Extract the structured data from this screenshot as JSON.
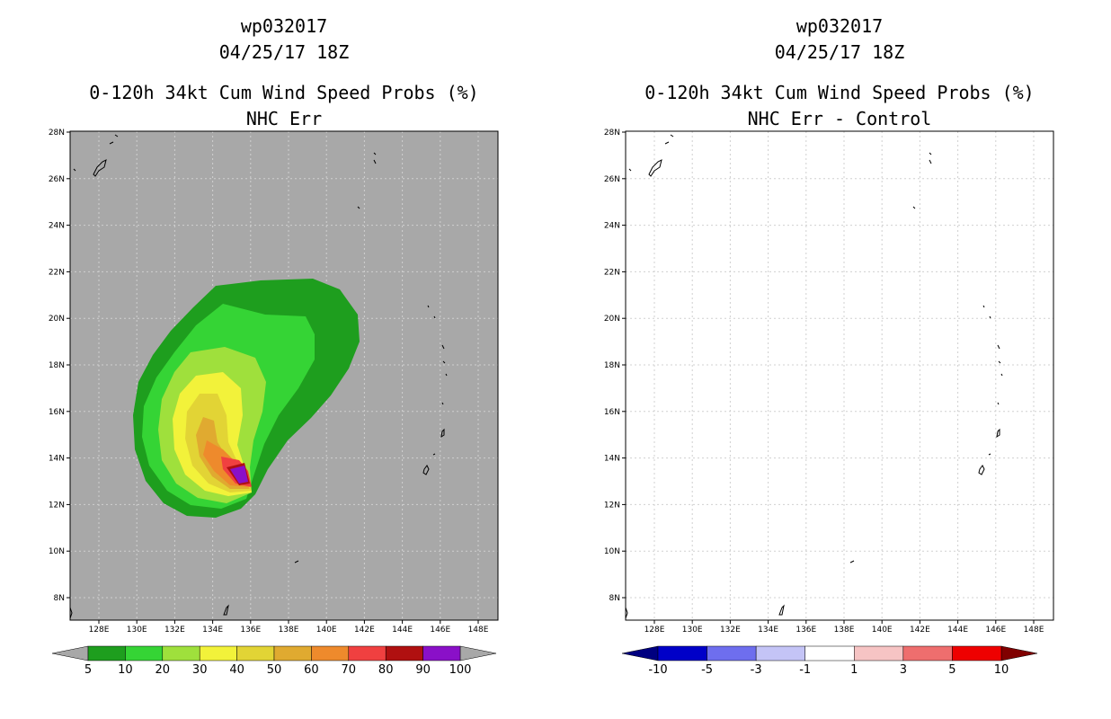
{
  "left": {
    "storm_id": "wp032017",
    "datetime": "04/25/17 18Z",
    "product": "0-120h 34kt Cum Wind Speed Probs (%)",
    "subtitle": "NHC Err",
    "colorbar": {
      "labels": [
        "5",
        "10",
        "20",
        "30",
        "40",
        "50",
        "60",
        "70",
        "80",
        "90",
        "100"
      ],
      "colors": [
        "#1e9e1e",
        "#35d435",
        "#9fe03c",
        "#f2f23a",
        "#e2d435",
        "#e0aa30",
        "#ee8a2c",
        "#f04040",
        "#b01010",
        "#8a10c8"
      ]
    }
  },
  "right": {
    "storm_id": "wp032017",
    "datetime": "04/25/17 18Z",
    "product": "0-120h 34kt Cum Wind Speed Probs (%)",
    "subtitle": "NHC Err - Control",
    "colorbar": {
      "labels": [
        "-10",
        "-5",
        "-3",
        "-1",
        "1",
        "3",
        "5",
        "10"
      ],
      "colors": [
        "#0000c8",
        "#6e6eee",
        "#c4c4f6",
        "#ffffff",
        "#f6c4c4",
        "#ee6e6e",
        "#ee0000"
      ]
    }
  },
  "axes": {
    "lat_labels": [
      "28N",
      "26N",
      "24N",
      "22N",
      "20N",
      "18N",
      "16N",
      "14N",
      "12N",
      "10N",
      "8N"
    ],
    "lon_labels": [
      "128E",
      "130E",
      "132E",
      "134E",
      "136E",
      "138E",
      "140E",
      "142E",
      "144E",
      "146E",
      "148E"
    ]
  },
  "colors": {
    "land_background": "#a8a8a8",
    "grid": "#d0d0d0"
  }
}
